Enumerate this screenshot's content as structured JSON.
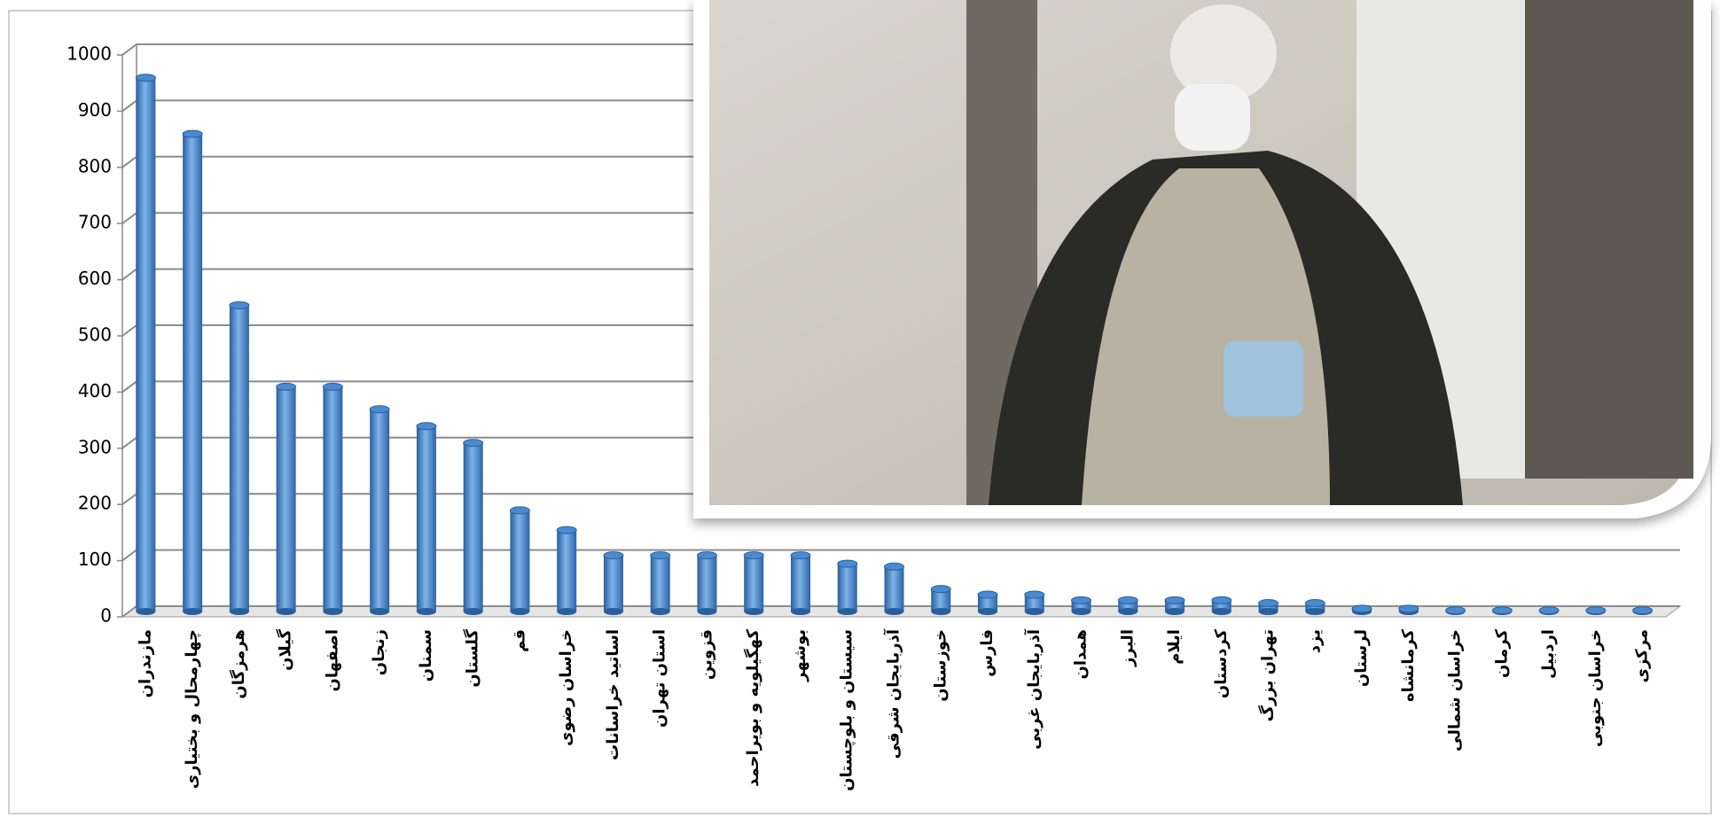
{
  "chart_data": {
    "type": "bar",
    "categories": [
      "مازندران",
      "چهارمحال و بختیاری",
      "هرمزگان",
      "گیلان",
      "اصفهان",
      "زنجان",
      "سمنان",
      "گلستان",
      "قم",
      "خراسان رضوی",
      "اساتید خراسانات",
      "استان تهران",
      "قزوین",
      "کهگیلویه و بویراحمد",
      "بوشهر",
      "سیستان و بلوچستان",
      "آذربایجان شرقی",
      "خوزستان",
      "فارس",
      "آذربایجان غربی",
      "همدان",
      "البرز",
      "ایلام",
      "کردستان",
      "تهران بزرگ",
      "یزد",
      "لرستان",
      "کرمانشاه",
      "خراسان شمالی",
      "کرمان",
      "اردبیل",
      "خراسان جنوبی",
      "مرکزی"
    ],
    "values": [
      950,
      850,
      545,
      400,
      400,
      360,
      330,
      300,
      180,
      145,
      100,
      100,
      100,
      100,
      100,
      85,
      80,
      40,
      30,
      30,
      20,
      20,
      20,
      20,
      15,
      15,
      5,
      5,
      2,
      2,
      2,
      2,
      2
    ],
    "color": "#4a8ad0",
    "ylim": [
      0,
      1000
    ],
    "yticks": [
      0,
      100,
      200,
      300,
      400,
      500,
      600,
      700,
      800,
      900,
      1000
    ],
    "grid": true
  }
}
